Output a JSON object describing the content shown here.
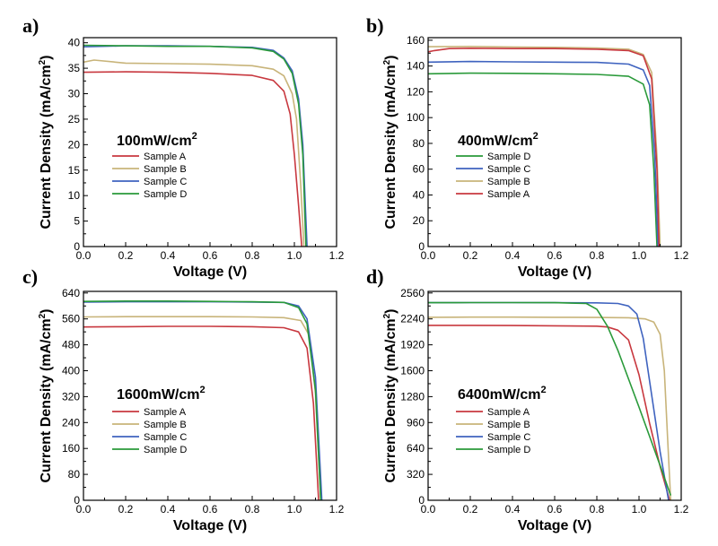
{
  "colors": {
    "Sample A": "#c8383f",
    "Sample B": "#c8b47a",
    "Sample C": "#3f63bf",
    "Sample D": "#2a9a3a"
  },
  "chart_data": [
    {
      "type": "line",
      "panel": "a)",
      "annotation": "100mW/cm",
      "annotation_sup": "2",
      "xlabel": "Voltage (V)",
      "ylabel": "Current Density (mA/cm",
      "ylabel_sup": "2",
      "ylabel_end": ")",
      "xlim": [
        0,
        1.2
      ],
      "ylim": [
        0,
        41
      ],
      "xticks": [
        0.0,
        0.2,
        0.4,
        0.6,
        0.8,
        1.0,
        1.2
      ],
      "yticks": [
        0,
        5,
        10,
        15,
        20,
        25,
        30,
        35,
        40
      ],
      "legend": [
        "Sample A",
        "Sample B",
        "Sample C",
        "Sample D"
      ],
      "series": [
        {
          "name": "Sample A",
          "x": [
            0,
            0.2,
            0.4,
            0.6,
            0.8,
            0.9,
            0.95,
            0.98,
            1.0,
            1.02,
            1.035
          ],
          "y": [
            34.2,
            34.3,
            34.2,
            34.0,
            33.6,
            32.6,
            30.5,
            26.0,
            18.0,
            8.0,
            0
          ]
        },
        {
          "name": "Sample B",
          "x": [
            0,
            0.05,
            0.2,
            0.4,
            0.6,
            0.8,
            0.9,
            0.95,
            0.99,
            1.01,
            1.03,
            1.045
          ],
          "y": [
            36.2,
            36.6,
            36.0,
            35.9,
            35.8,
            35.5,
            34.8,
            33.5,
            30.0,
            25.0,
            12.0,
            0
          ]
        },
        {
          "name": "Sample C",
          "x": [
            0,
            0.2,
            0.4,
            0.6,
            0.8,
            0.9,
            0.95,
            0.99,
            1.02,
            1.04,
            1.06
          ],
          "y": [
            39.2,
            39.4,
            39.4,
            39.3,
            39.1,
            38.5,
            37.0,
            34.5,
            29.0,
            20.0,
            0
          ]
        },
        {
          "name": "Sample D",
          "x": [
            0,
            0.2,
            0.4,
            0.6,
            0.8,
            0.9,
            0.95,
            0.99,
            1.02,
            1.04,
            1.055
          ],
          "y": [
            39.5,
            39.4,
            39.3,
            39.3,
            39.0,
            38.3,
            36.8,
            34.0,
            28.0,
            18.0,
            0
          ]
        }
      ]
    },
    {
      "type": "line",
      "panel": "b)",
      "annotation": "400mW/cm",
      "annotation_sup": "2",
      "xlabel": "Voltage (V)",
      "ylabel": "Current Density (mA/cm",
      "ylabel_sup": "2",
      "ylabel_end": ")",
      "xlim": [
        0,
        1.2
      ],
      "ylim": [
        0,
        162
      ],
      "xticks": [
        0.0,
        0.2,
        0.4,
        0.6,
        0.8,
        1.0,
        1.2
      ],
      "yticks": [
        0,
        20,
        40,
        60,
        80,
        100,
        120,
        140,
        160
      ],
      "legend": [
        "Sample D",
        "Sample C",
        "Sample B",
        "Sample A"
      ],
      "series": [
        {
          "name": "Sample D",
          "x": [
            0,
            0.2,
            0.4,
            0.6,
            0.8,
            0.95,
            1.02,
            1.05,
            1.07,
            1.085
          ],
          "y": [
            134,
            134.5,
            134.3,
            134.0,
            133.5,
            132.0,
            126.0,
            110.0,
            60.0,
            0
          ]
        },
        {
          "name": "Sample C",
          "x": [
            0,
            0.2,
            0.4,
            0.6,
            0.8,
            0.95,
            1.02,
            1.05,
            1.075,
            1.09
          ],
          "y": [
            143,
            143.5,
            143.2,
            143.0,
            142.8,
            141.5,
            137.0,
            125.0,
            70.0,
            0
          ]
        },
        {
          "name": "Sample B",
          "x": [
            0,
            0.2,
            0.4,
            0.6,
            0.8,
            0.95,
            1.02,
            1.06,
            1.085,
            1.1
          ],
          "y": [
            155,
            155.2,
            154.8,
            154.5,
            154.0,
            153.0,
            149.0,
            135.0,
            70.0,
            0
          ]
        },
        {
          "name": "Sample A",
          "x": [
            0,
            0.03,
            0.1,
            0.2,
            0.4,
            0.6,
            0.8,
            0.95,
            1.02,
            1.06,
            1.085,
            1.095
          ],
          "y": [
            151,
            152,
            153.5,
            153.8,
            153.5,
            153.5,
            153.0,
            152.0,
            148.0,
            130.0,
            60.0,
            0
          ]
        }
      ]
    },
    {
      "type": "line",
      "panel": "c)",
      "annotation": "1600mW/cm",
      "annotation_sup": "2",
      "xlabel": "Voltage (V)",
      "ylabel": "Current Density (mA/cm",
      "ylabel_sup": "2",
      "ylabel_end": ")",
      "xlim": [
        0,
        1.2
      ],
      "ylim": [
        0,
        645
      ],
      "xticks": [
        0.0,
        0.2,
        0.4,
        0.6,
        0.8,
        1.0,
        1.2
      ],
      "yticks": [
        0,
        80,
        160,
        240,
        320,
        400,
        480,
        560,
        640
      ],
      "legend": [
        "Sample A",
        "Sample B",
        "Sample C",
        "Sample D"
      ],
      "series": [
        {
          "name": "Sample A",
          "x": [
            0,
            0.2,
            0.4,
            0.6,
            0.8,
            0.95,
            1.02,
            1.06,
            1.09,
            1.115
          ],
          "y": [
            535,
            536,
            537,
            537,
            536,
            533,
            520,
            470,
            300,
            0
          ]
        },
        {
          "name": "Sample B",
          "x": [
            0,
            0.2,
            0.4,
            0.6,
            0.8,
            0.95,
            1.03,
            1.07,
            1.1,
            1.125
          ],
          "y": [
            566,
            567,
            567,
            567,
            566,
            564,
            555,
            510,
            330,
            0
          ]
        },
        {
          "name": "Sample C",
          "x": [
            0,
            0.2,
            0.4,
            0.6,
            0.8,
            0.95,
            1.02,
            1.06,
            1.1,
            1.13
          ],
          "y": [
            612,
            613,
            613,
            613,
            612,
            611,
            600,
            560,
            380,
            0
          ]
        },
        {
          "name": "Sample D",
          "x": [
            0,
            0.2,
            0.4,
            0.6,
            0.8,
            0.95,
            1.02,
            1.06,
            1.1,
            1.125
          ],
          "y": [
            614,
            615,
            615,
            614,
            613,
            611,
            595,
            545,
            340,
            0
          ]
        }
      ]
    },
    {
      "type": "line",
      "panel": "d)",
      "annotation": "6400mW/cm",
      "annotation_sup": "2",
      "xlabel": "Voltage (V)",
      "ylabel": "Current Density (mA/cm",
      "ylabel_sup": "2",
      "ylabel_end": ")",
      "xlim": [
        0,
        1.2
      ],
      "ylim": [
        0,
        2580
      ],
      "xticks": [
        0.0,
        0.2,
        0.4,
        0.6,
        0.8,
        1.0,
        1.2
      ],
      "yticks": [
        0,
        320,
        640,
        960,
        1280,
        1600,
        1920,
        2240,
        2560
      ],
      "legend": [
        "Sample A",
        "Sample B",
        "Sample C",
        "Sample D"
      ],
      "series": [
        {
          "name": "Sample A",
          "x": [
            0,
            0.2,
            0.4,
            0.6,
            0.8,
            0.85,
            0.9,
            0.95,
            1.0,
            1.05,
            1.1,
            1.145
          ],
          "y": [
            2160,
            2160,
            2158,
            2155,
            2150,
            2140,
            2100,
            1980,
            1550,
            950,
            420,
            0
          ]
        },
        {
          "name": "Sample B",
          "x": [
            0,
            0.2,
            0.4,
            0.6,
            0.8,
            0.95,
            1.03,
            1.07,
            1.1,
            1.12,
            1.135,
            1.15
          ],
          "y": [
            2260,
            2262,
            2262,
            2260,
            2258,
            2255,
            2240,
            2200,
            2050,
            1600,
            800,
            0
          ]
        },
        {
          "name": "Sample C",
          "x": [
            0,
            0.2,
            0.4,
            0.6,
            0.8,
            0.9,
            0.95,
            0.99,
            1.02,
            1.06,
            1.1,
            1.14
          ],
          "y": [
            2440,
            2442,
            2442,
            2440,
            2438,
            2430,
            2400,
            2300,
            2000,
            1300,
            600,
            0
          ]
        },
        {
          "name": "Sample D",
          "x": [
            0,
            0.2,
            0.4,
            0.6,
            0.75,
            0.8,
            0.85,
            0.9,
            1.0,
            1.1,
            1.15
          ],
          "y": [
            2440,
            2442,
            2442,
            2440,
            2430,
            2360,
            2150,
            1850,
            1150,
            430,
            60
          ]
        }
      ]
    }
  ]
}
